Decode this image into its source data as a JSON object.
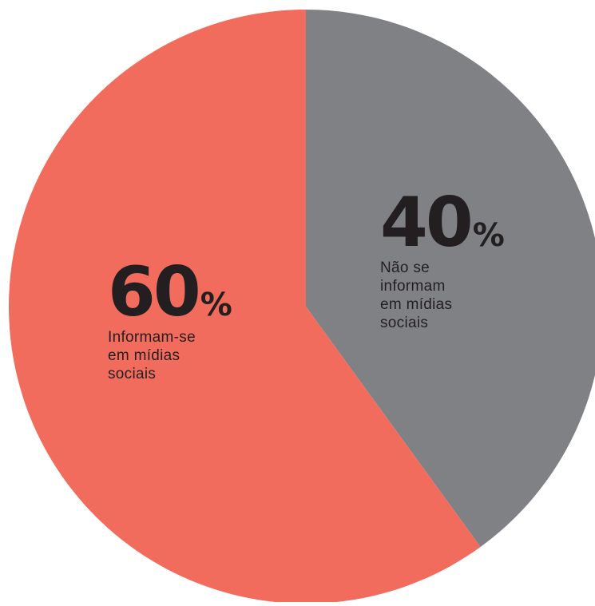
{
  "chart_data": {
    "type": "pie",
    "slices": [
      {
        "label": "Não se informam em mídias sociais",
        "value": 40,
        "color": "#808185",
        "percent_number": "40",
        "percent_sign": "%",
        "label_lines": [
          "Não se",
          "informam",
          "em mídias",
          "sociais"
        ]
      },
      {
        "label": "Informam-se em mídias sociais",
        "value": 60,
        "color": "#f26c5e",
        "percent_number": "60",
        "percent_sign": "%",
        "label_lines": [
          "Informam-se",
          "em mídias",
          "sociais"
        ]
      }
    ],
    "start_angle": "12 o'clock",
    "direction": "clockwise"
  }
}
